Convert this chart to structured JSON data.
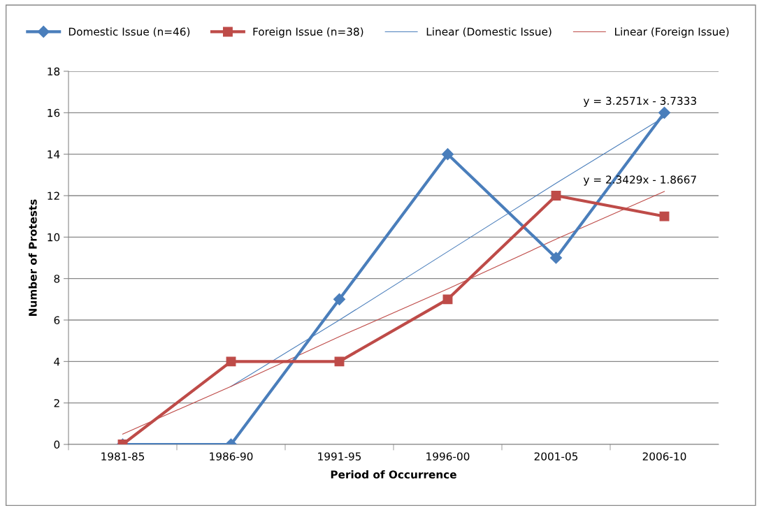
{
  "chart_data": {
    "type": "line",
    "xlabel": "Period of Occurrence",
    "ylabel": "Number of Protests",
    "categories": [
      "1981-85",
      "1986-90",
      "1991-95",
      "1996-00",
      "2001-05",
      "2006-10"
    ],
    "series": [
      {
        "name": "Domestic Issue (n=46)",
        "color": "#4a7ebb",
        "marker": "diamond",
        "values": [
          0,
          0,
          7,
          14,
          9,
          16
        ]
      },
      {
        "name": "Foreign Issue (n=38)",
        "color": "#be4b48",
        "marker": "square",
        "values": [
          0,
          4,
          4,
          7,
          12,
          11
        ]
      },
      {
        "name": "Linear (Domestic Issue)",
        "color": "#4a7ebb",
        "marker": "none",
        "values": [
          null,
          2.8,
          6.0,
          9.3,
          12.6,
          15.8
        ]
      },
      {
        "name": "Linear (Foreign Issue)",
        "color": "#be4b48",
        "marker": "none",
        "values": [
          0.5,
          2.8,
          5.2,
          7.5,
          9.9,
          12.2
        ]
      }
    ],
    "ylim": [
      0,
      18
    ],
    "yticks": [
      0,
      2,
      4,
      6,
      8,
      10,
      12,
      14,
      16,
      18
    ],
    "grid": "y",
    "legend": "top",
    "annotations": [
      {
        "text": "y = 3.2571x - 3.7333",
        "x": "2006-10",
        "y": 16
      },
      {
        "text": "y = 2.3429x - 1.8667",
        "x": "2006-10",
        "y": 12.2
      }
    ]
  }
}
